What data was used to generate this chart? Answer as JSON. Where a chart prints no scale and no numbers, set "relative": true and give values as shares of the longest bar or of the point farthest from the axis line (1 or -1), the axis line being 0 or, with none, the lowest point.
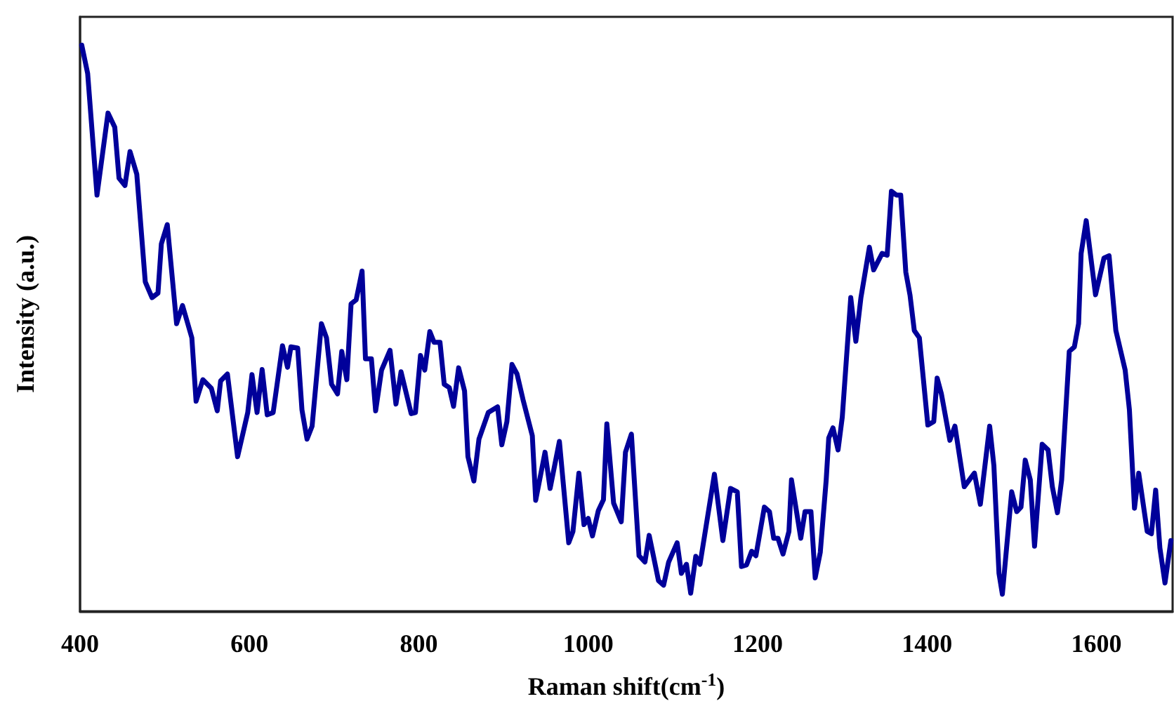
{
  "chart_data": {
    "type": "line",
    "xlabel": "Raman shift(cm$^{-1}$)",
    "ylabel": "Intensity (a.u.)",
    "relative": true,
    "xlim": [
      400,
      1690
    ],
    "xticks": [
      400,
      600,
      800,
      1000,
      1200,
      1400,
      1600
    ],
    "marker": "none",
    "line_style": "solid",
    "series": [
      {
        "color": "#00009a",
        "x": [
          402,
          409,
          420,
          433,
          441,
          446,
          453,
          459,
          467,
          477,
          485,
          492,
          496,
          503,
          514,
          521,
          532,
          537,
          545,
          555,
          562,
          566,
          574,
          586,
          598,
          603,
          609,
          615,
          621,
          628,
          639,
          645,
          649,
          657,
          662,
          668,
          674,
          685,
          691,
          697,
          704,
          709,
          715,
          720,
          726,
          733,
          737,
          744,
          749,
          756,
          766,
          773,
          779,
          791,
          796,
          802,
          807,
          813,
          818,
          825,
          830,
          836,
          841,
          847,
          854,
          858,
          865,
          871,
          882,
          893,
          898,
          904,
          910,
          916,
          923,
          934,
          938,
          949,
          955,
          966,
          977,
          982,
          989,
          995,
          1000,
          1005,
          1012,
          1018,
          1022,
          1030,
          1039,
          1044,
          1051,
          1060,
          1067,
          1072,
          1083,
          1089,
          1095,
          1105,
          1110,
          1116,
          1121,
          1127,
          1132,
          1149,
          1159,
          1168,
          1176,
          1181,
          1187,
          1193,
          1198,
          1208,
          1214,
          1219,
          1224,
          1230,
          1237,
          1240,
          1251,
          1256,
          1263,
          1268,
          1274,
          1281,
          1284,
          1289,
          1295,
          1300,
          1310,
          1316,
          1322,
          1332,
          1337,
          1347,
          1353,
          1358,
          1364,
          1369,
          1375,
          1380,
          1385,
          1391,
          1401,
          1408,
          1412,
          1417,
          1427,
          1433,
          1444,
          1456,
          1463,
          1474,
          1479,
          1485,
          1489,
          1500,
          1506,
          1511,
          1516,
          1522,
          1527,
          1536,
          1543,
          1548,
          1554,
          1559,
          1568,
          1574,
          1579,
          1582,
          1588,
          1599,
          1609,
          1615,
          1623,
          1634,
          1639,
          1645,
          1650,
          1660,
          1665,
          1670,
          1675,
          1681,
          1688
        ],
        "values": [
          1,
          0.95,
          0.735,
          0.88,
          0.855,
          0.765,
          0.752,
          0.812,
          0.772,
          0.582,
          0.554,
          0.562,
          0.649,
          0.683,
          0.508,
          0.54,
          0.483,
          0.371,
          0.409,
          0.394,
          0.354,
          0.407,
          0.419,
          0.273,
          0.351,
          0.418,
          0.351,
          0.427,
          0.347,
          0.351,
          0.469,
          0.431,
          0.467,
          0.465,
          0.356,
          0.304,
          0.327,
          0.508,
          0.483,
          0.401,
          0.384,
          0.459,
          0.409,
          0.543,
          0.55,
          0.601,
          0.446,
          0.446,
          0.354,
          0.426,
          0.461,
          0.366,
          0.423,
          0.349,
          0.351,
          0.452,
          0.426,
          0.494,
          0.475,
          0.475,
          0.401,
          0.395,
          0.362,
          0.43,
          0.389,
          0.273,
          0.23,
          0.304,
          0.351,
          0.361,
          0.294,
          0.335,
          0.436,
          0.419,
          0.374,
          0.31,
          0.196,
          0.281,
          0.217,
          0.3,
          0.121,
          0.141,
          0.244,
          0.153,
          0.164,
          0.133,
          0.178,
          0.197,
          0.331,
          0.191,
          0.158,
          0.281,
          0.313,
          0.098,
          0.087,
          0.134,
          0.054,
          0.046,
          0.087,
          0.121,
          0.067,
          0.083,
          0.032,
          0.097,
          0.083,
          0.242,
          0.125,
          0.217,
          0.211,
          0.079,
          0.082,
          0.106,
          0.098,
          0.184,
          0.176,
          0.129,
          0.129,
          0.101,
          0.141,
          0.232,
          0.129,
          0.176,
          0.176,
          0.059,
          0.104,
          0.232,
          0.306,
          0.324,
          0.285,
          0.343,
          0.554,
          0.477,
          0.554,
          0.643,
          0.603,
          0.632,
          0.629,
          0.742,
          0.735,
          0.735,
          0.599,
          0.558,
          0.496,
          0.483,
          0.329,
          0.335,
          0.412,
          0.384,
          0.302,
          0.327,
          0.22,
          0.244,
          0.189,
          0.327,
          0.257,
          0.067,
          0.03,
          0.211,
          0.176,
          0.184,
          0.267,
          0.232,
          0.115,
          0.295,
          0.285,
          0.22,
          0.174,
          0.232,
          0.459,
          0.467,
          0.508,
          0.632,
          0.69,
          0.559,
          0.624,
          0.628,
          0.496,
          0.426,
          0.356,
          0.182,
          0.244,
          0.141,
          0.137,
          0.214,
          0.112,
          0.05,
          0.125
        ]
      }
    ]
  }
}
